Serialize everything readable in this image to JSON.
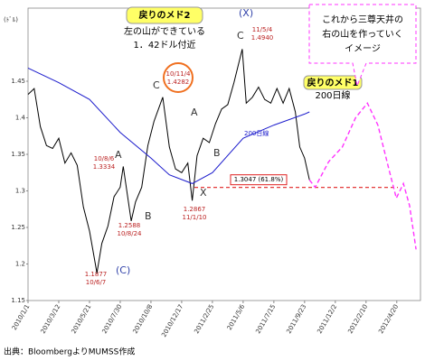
{
  "chart_data": {
    "type": "line",
    "y_unit": "(ﾄﾞﾙ)",
    "ylim": [
      1.15,
      1.55
    ],
    "yticks": [
      1.15,
      1.2,
      1.25,
      1.3,
      1.35,
      1.4,
      1.45
    ],
    "xlim": [
      "2010/1/1",
      "2012/6/13"
    ],
    "xticks": [
      "2010/1/1",
      "2010/3/12",
      "2010/5/21",
      "2010/7/30",
      "2010/10/8",
      "2010/12/17",
      "2011/2/25",
      "2011/5/6",
      "2011/7/15",
      "2011/9/23",
      "2011/12/2",
      "2012/2/10",
      "2012/4/20"
    ],
    "series": [
      {
        "color": "#000000",
        "x": [
          "2010/1/1",
          "2010/1/15",
          "2010/1/29",
          "2010/2/12",
          "2010/2/26",
          "2010/3/12",
          "2010/3/26",
          "2010/4/9",
          "2010/4/23",
          "2010/5/7",
          "2010/5/21",
          "2010/6/7",
          "2010/6/18",
          "2010/7/2",
          "2010/7/16",
          "2010/7/30",
          "2010/8/6",
          "2010/8/24",
          "2010/9/3",
          "2010/9/17",
          "2010/10/1",
          "2010/10/15",
          "2010/11/4",
          "2010/11/19",
          "2010/12/3",
          "2010/12/17",
          "2010/12/31",
          "2011/1/10",
          "2011/1/21",
          "2011/2/4",
          "2011/2/18",
          "2011/3/4",
          "2011/3/18",
          "2011/4/1",
          "2011/4/15",
          "2011/5/4",
          "2011/5/13",
          "2011/5/27",
          "2011/6/10",
          "2011/6/24",
          "2011/7/8",
          "2011/7/22",
          "2011/8/5",
          "2011/8/19",
          "2011/9/2",
          "2011/9/12",
          "2011/9/23",
          "2011/10/4"
        ],
        "values": [
          1.432,
          1.44,
          1.388,
          1.362,
          1.358,
          1.372,
          1.338,
          1.352,
          1.335,
          1.278,
          1.245,
          1.1877,
          1.228,
          1.252,
          1.292,
          1.305,
          1.3334,
          1.2588,
          1.285,
          1.305,
          1.362,
          1.395,
          1.4282,
          1.36,
          1.33,
          1.325,
          1.338,
          1.2867,
          1.348,
          1.372,
          1.366,
          1.392,
          1.412,
          1.418,
          1.448,
          1.494,
          1.42,
          1.428,
          1.442,
          1.425,
          1.42,
          1.44,
          1.42,
          1.44,
          1.408,
          1.36,
          1.345,
          1.315
        ]
      },
      {
        "name": "200日線",
        "color": "#1a1acc",
        "x": [
          "2010/1/1",
          "2010/3/12",
          "2010/5/21",
          "2010/7/30",
          "2010/10/8",
          "2010/11/19",
          "2011/1/10",
          "2011/2/25",
          "2011/5/6",
          "2011/7/15",
          "2011/9/23",
          "2011/10/4"
        ],
        "values": [
          1.468,
          1.448,
          1.425,
          1.38,
          1.345,
          1.322,
          1.31,
          1.325,
          1.372,
          1.39,
          1.405,
          1.408
        ]
      },
      {
        "color": "#ff33ff",
        "dashed": true,
        "x": [
          "2011/10/4",
          "2011/10/17",
          "2011/11/17",
          "2011/12/18",
          "2012/1/17",
          "2012/2/13",
          "2012/3/8",
          "2012/4/2",
          "2012/4/19",
          "2012/5/5",
          "2012/5/19",
          "2012/6/3"
        ],
        "values": [
          1.315,
          1.305,
          1.34,
          1.36,
          1.4,
          1.42,
          1.39,
          1.33,
          1.29,
          1.31,
          1.28,
          1.22
        ]
      }
    ],
    "reference_line": {
      "value": 1.3047,
      "label": "1.3047 (61.8%)",
      "color": "#e02020"
    },
    "annotations": {
      "low1": [
        "1.1877",
        "10/6/7"
      ],
      "b1": [
        "10/8/6",
        "1.3334"
      ],
      "low2": [
        "1.2588",
        "10/8/24"
      ],
      "peak1": [
        "10/11/4",
        "1.4282"
      ],
      "low3": [
        "1.2867",
        "11/1/10"
      ],
      "peak2": [
        "11/5/4",
        "1.4940"
      ],
      "waves": [
        "(C)",
        "A",
        "B",
        "C",
        "X",
        "(X)",
        "A",
        "B",
        "C"
      ]
    },
    "callout2": {
      "title": "戻りのメド2",
      "lines": [
        "左の山ができている",
        "1．42ドル付近"
      ]
    },
    "callout1": {
      "title": "戻りのメド1",
      "line": "200日線"
    },
    "forecast_note": [
      "これから三尊天井の",
      "右の山を作っていく",
      "イメージ"
    ],
    "source": "出典：BloombergよりMUMSS作成"
  }
}
